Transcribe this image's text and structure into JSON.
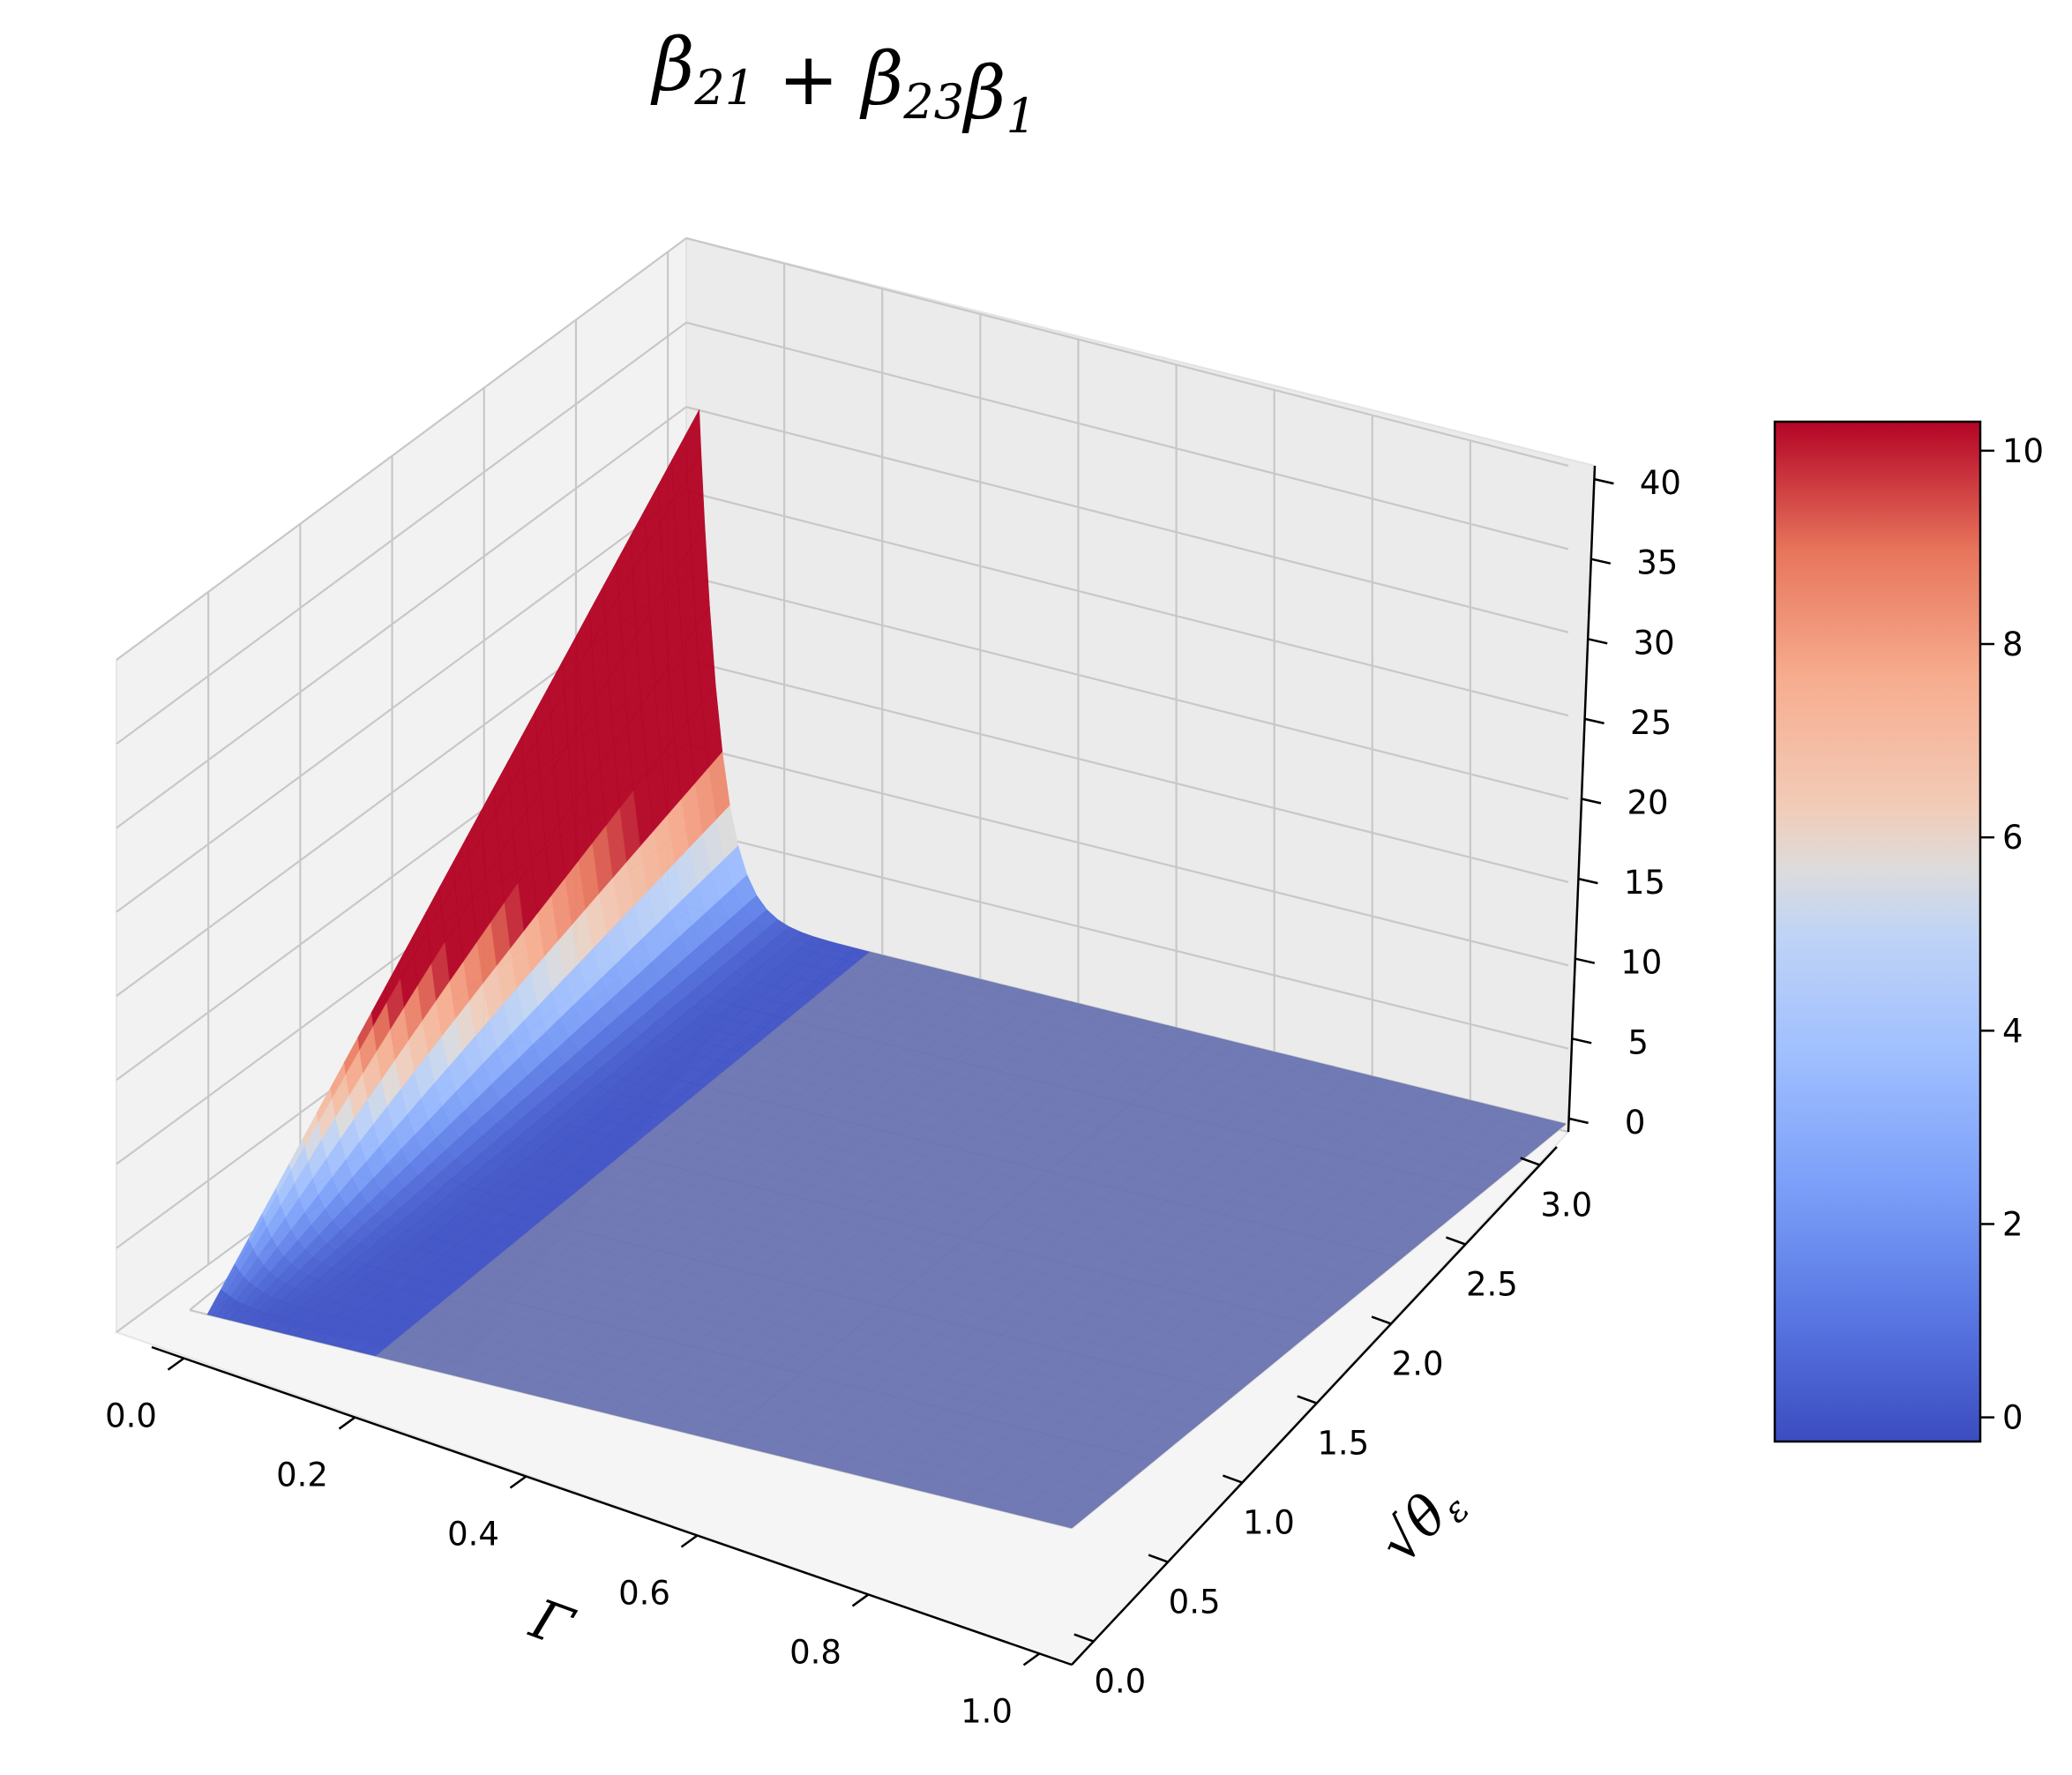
{
  "chart_data": {
    "type": "surface",
    "title": {
      "parts": [
        {
          "t": "β",
          "sub": "21"
        },
        {
          "t": " + "
        },
        {
          "t": "β",
          "sub": "23"
        },
        {
          "t": "β",
          "sub": "1"
        }
      ]
    },
    "x_axis": {
      "label": "Γ",
      "range": [
        0.0,
        1.0
      ],
      "ticks": [
        "0.0",
        "0.2",
        "0.4",
        "0.6",
        "0.8",
        "1.0"
      ]
    },
    "y_axis": {
      "label": "√θ",
      "label_sub": "ε",
      "range": [
        0.0,
        3.0
      ],
      "ticks": [
        "0.0",
        "0.5",
        "1.0",
        "1.5",
        "2.0",
        "2.5",
        "3.0"
      ]
    },
    "z_axis": {
      "range": [
        0,
        40
      ],
      "ticks": [
        "0",
        "5",
        "10",
        "15",
        "20",
        "25",
        "30",
        "35",
        "40"
      ]
    },
    "colorbar": {
      "colormap": "coolwarm",
      "range": [
        -0.25,
        10.3
      ],
      "ticks": [
        "0",
        "2",
        "4",
        "6",
        "8",
        "10"
      ]
    },
    "surface_profile": {
      "description_values": "z(Γ, √θε) peaks near Γ≈0 and √θε≈3, approx 31 at the corner, decaying to ~0 for Γ>0.2",
      "peak_z": 31,
      "z_at_large_gamma": 0
    },
    "grid": true
  }
}
